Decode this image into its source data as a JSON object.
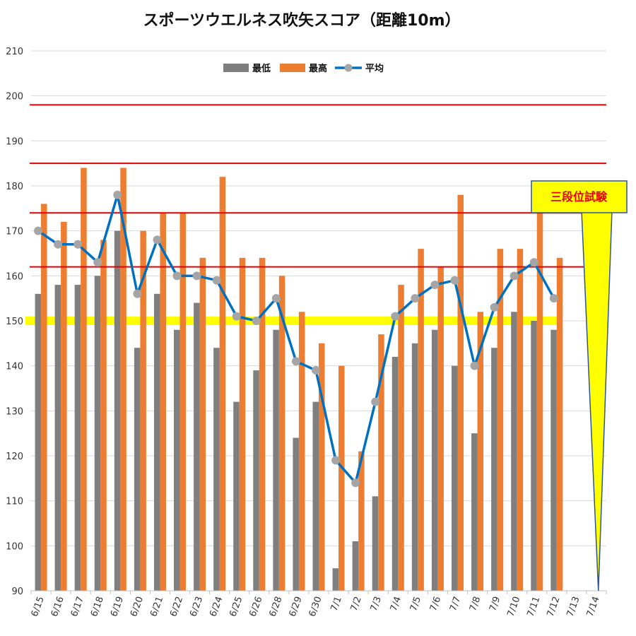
{
  "chart_data": {
    "type": "bar",
    "title": "スポーツウエルネス吹矢スコア（距離10m）",
    "categories": [
      "6/15",
      "6/16",
      "6/17",
      "6/18",
      "6/19",
      "6/20",
      "6/21",
      "6/22",
      "6/23",
      "6/24",
      "6/25",
      "6/26",
      "6/28",
      "6/29",
      "6/30",
      "7/1",
      "7/2",
      "7/3",
      "7/4",
      "7/5",
      "7/6",
      "7/7",
      "7/8",
      "7/9",
      "7/10",
      "7/11",
      "7/12",
      "7/13",
      "7/14"
    ],
    "series": [
      {
        "name": "最低",
        "type": "bar",
        "color": "#7f7f7f",
        "values": [
          156,
          158,
          158,
          160,
          170,
          144,
          156,
          148,
          154,
          144,
          132,
          139,
          148,
          124,
          132,
          95,
          101,
          111,
          142,
          145,
          148,
          140,
          125,
          144,
          152,
          150,
          148,
          null,
          null
        ]
      },
      {
        "name": "最高",
        "type": "bar",
        "color": "#ed7d31",
        "values": [
          176,
          172,
          184,
          168,
          184,
          170,
          174,
          174,
          164,
          182,
          164,
          164,
          160,
          152,
          145,
          140,
          121,
          147,
          158,
          166,
          162,
          178,
          152,
          166,
          166,
          174,
          164,
          null,
          null
        ]
      },
      {
        "name": "平均",
        "type": "line",
        "color": "#0070c0",
        "marker_color": "#a5a5a5",
        "values": [
          170,
          167,
          167,
          163,
          178,
          156,
          168,
          160,
          160,
          159,
          151,
          150,
          155,
          141,
          139,
          119,
          114,
          132,
          151,
          155,
          158,
          159,
          140,
          153,
          160,
          163,
          155,
          null,
          null
        ]
      }
    ],
    "ylim": [
      90,
      210
    ],
    "yticks": [
      90,
      100,
      110,
      120,
      130,
      140,
      150,
      160,
      170,
      180,
      190,
      200,
      210
    ],
    "reference_lines": [
      {
        "value": 198,
        "color": "#e60000"
      },
      {
        "value": 185,
        "color": "#e60000"
      },
      {
        "value": 174,
        "color": "#e60000"
      },
      {
        "value": 162,
        "color": "#e60000"
      }
    ],
    "highlight_band": {
      "value": 150,
      "color": "#ffff00"
    },
    "callout": {
      "text": "三段位試験",
      "color": "#e60000",
      "fill": "#ffff00",
      "border": "#2f5597",
      "target_category": "7/14"
    },
    "legend_position": "top-center",
    "grid": true
  }
}
